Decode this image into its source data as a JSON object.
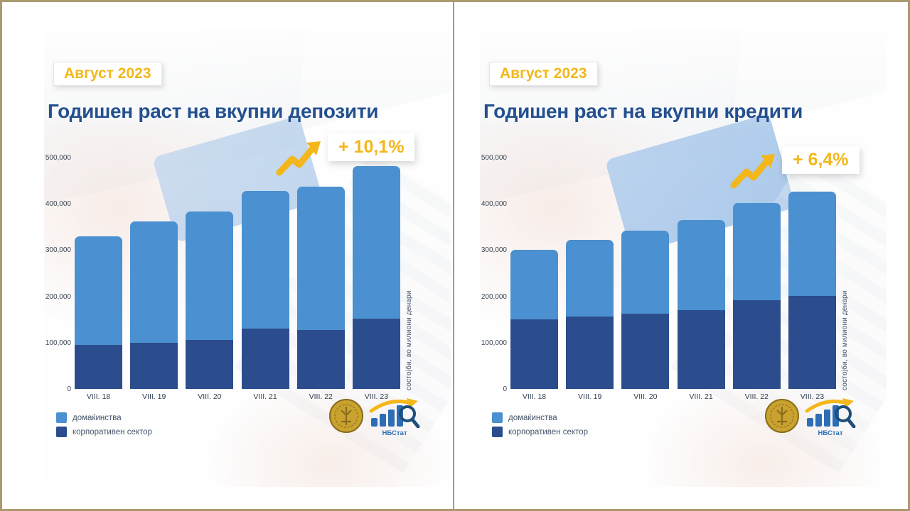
{
  "colors": {
    "bar_households_light_blue": "#4b90d0",
    "bar_corporate_dark_blue": "#2c4d8d",
    "accent_yellow": "#f3b71b",
    "title_navy": "#24508f",
    "frame_tan": "#ab9a70"
  },
  "panels": [
    {
      "badge": "Август 2023",
      "title": "Годишен раст на вкупни депозити",
      "growth_label": "+ 10,1%",
      "axis_note": "состојби, во милиони денари",
      "legend": [
        {
          "label": "домаќинства",
          "color": "#4b90d0"
        },
        {
          "label": "корпоративен сектор",
          "color": "#2c4d8d"
        }
      ],
      "logos": {
        "coin": "nbrm-coin",
        "nbstat_label": "НБСтат"
      },
      "chart_data": {
        "type": "bar",
        "stacked": true,
        "title": "Годишен раст на вкупни депозити",
        "categories": [
          "VIII. 18",
          "VIII. 19",
          "VIII. 20",
          "VIII. 21",
          "VIII. 22",
          "VIII. 23"
        ],
        "series": [
          {
            "name": "домаќинства",
            "color": "#4b90d0",
            "position": "top",
            "values": [
              235000,
              262000,
              278000,
              297000,
              310000,
              329000
            ]
          },
          {
            "name": "корпоративен сектор",
            "color": "#2c4d8d",
            "position": "bottom",
            "values": [
              95000,
              100000,
              106000,
              130000,
              127000,
              152000
            ]
          }
        ],
        "totals": [
          330000,
          362000,
          384000,
          427000,
          437000,
          481000
        ],
        "ylabel": "состојби, во милиони денари",
        "ylim": [
          0,
          500000
        ],
        "yticks": [
          {
            "value": 500000,
            "label": "500,000"
          },
          {
            "value": 400000,
            "label": "400,000"
          },
          {
            "value": 300000,
            "label": "300,000"
          },
          {
            "value": 200000,
            "label": "200,000"
          },
          {
            "value": 100000,
            "label": "100,000"
          },
          {
            "value": 0,
            "label": "0"
          }
        ],
        "grid": false,
        "legend_position": "bottom-left",
        "annotation": "+ 10,1%"
      }
    },
    {
      "badge": "Август 2023",
      "title": "Годишен раст на вкупни кредити",
      "growth_label": "+ 6,4%",
      "axis_note": "состојби, во милиони денари",
      "legend": [
        {
          "label": "домаќинства",
          "color": "#4b90d0"
        },
        {
          "label": "корпоративен сектор",
          "color": "#2c4d8d"
        }
      ],
      "logos": {
        "coin": "nbrm-coin",
        "nbstat_label": "НБСтат"
      },
      "chart_data": {
        "type": "bar",
        "stacked": true,
        "title": "Годишен раст на вкупни кредити",
        "categories": [
          "VIII. 18",
          "VIII. 19",
          "VIII. 20",
          "VIII. 21",
          "VIII. 22",
          "VIII. 23"
        ],
        "series": [
          {
            "name": "домаќинства",
            "color": "#4b90d0",
            "position": "top",
            "values": [
              150000,
              165000,
              179000,
              195000,
              210000,
              226000
            ]
          },
          {
            "name": "корпоративен сектор",
            "color": "#2c4d8d",
            "position": "bottom",
            "values": [
              150000,
              156000,
              163000,
              171000,
              191000,
              201000
            ]
          }
        ],
        "totals": [
          300000,
          321000,
          342000,
          366000,
          401000,
          427000
        ],
        "ylabel": "состојби, во милиони денари",
        "ylim": [
          0,
          500000
        ],
        "yticks": [
          {
            "value": 500000,
            "label": "500,000"
          },
          {
            "value": 400000,
            "label": "400,000"
          },
          {
            "value": 300000,
            "label": "300,000"
          },
          {
            "value": 200000,
            "label": "200,000"
          },
          {
            "value": 100000,
            "label": "100,000"
          },
          {
            "value": 0,
            "label": "0"
          }
        ],
        "grid": false,
        "legend_position": "bottom-left",
        "annotation": "+ 6,4%"
      }
    }
  ]
}
